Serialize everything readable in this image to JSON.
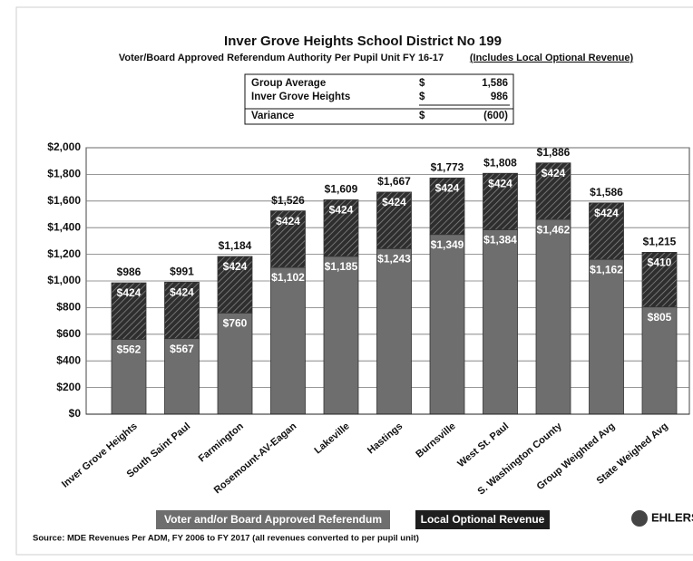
{
  "chart_data": {
    "type": "stacked_bar",
    "title": "Inver Grove Heights School District No 199",
    "subtitle": "Voter/Board Approved Referendum Authority Per Pupil Unit FY 16-17",
    "subtitle_note": "(Includes Local Optional Revenue)",
    "summary": {
      "rows": [
        [
          "Group Average",
          "$",
          "1,586"
        ],
        [
          "Inver Grove Heights",
          "$",
          "986"
        ],
        [
          "Variance",
          "$",
          "(600)"
        ]
      ]
    },
    "categories": [
      "Inver Grove Heights",
      "South Saint Paul",
      "Farmington",
      "Rosemount-AV-Eagan",
      "Lakeville",
      "Hastings",
      "Burnsville",
      "West St. Paul",
      "S. Washington County",
      "Group Weighted Avg",
      "State Weighed Avg"
    ],
    "series": [
      {
        "name": "Voter and/or Board Approved Referendum",
        "color": "#6e6e6e",
        "values": [
          562,
          567,
          760,
          1102,
          1185,
          1243,
          1349,
          1384,
          1462,
          1162,
          805
        ],
        "value_labels": [
          "$562",
          "$567",
          "$760",
          "$1,102",
          "$1,185",
          "$1,243",
          "$1,349",
          "$1,384",
          "$1,462",
          "$1,162",
          "$805"
        ]
      },
      {
        "name": "Local Optional Revenue",
        "color": "#2e2e2e",
        "values": [
          424,
          424,
          424,
          424,
          424,
          424,
          424,
          424,
          424,
          424,
          410
        ],
        "value_labels": [
          "$424",
          "$424",
          "$424",
          "$424",
          "$424",
          "$424",
          "$424",
          "$424",
          "$424",
          "$424",
          "$410"
        ]
      }
    ],
    "total_labels": [
      "$986",
      "$991",
      "$1,184",
      "$1,526",
      "$1,609",
      "$1,667",
      "$1,773",
      "$1,808",
      "$1,886",
      "$1,586",
      "$1,215"
    ],
    "ylim": [
      0,
      2000
    ],
    "yticks": [
      {
        "value": 0,
        "label": "$0"
      },
      {
        "value": 200,
        "label": "$200"
      },
      {
        "value": 400,
        "label": "$400"
      },
      {
        "value": 600,
        "label": "$600"
      },
      {
        "value": 800,
        "label": "$800"
      },
      {
        "value": 1000,
        "label": "$1,000"
      },
      {
        "value": 1200,
        "label": "$1,200"
      },
      {
        "value": 1400,
        "label": "$1,400"
      },
      {
        "value": 1600,
        "label": "$1,600"
      },
      {
        "value": 1800,
        "label": "$1,800"
      },
      {
        "value": 2000,
        "label": "$2,000"
      }
    ],
    "grid": true,
    "source": "Source:  MDE Revenues Per ADM, FY 2006 to FY 2017  (all revenues converted to per pupil unit)",
    "logo": "EHLERS"
  }
}
